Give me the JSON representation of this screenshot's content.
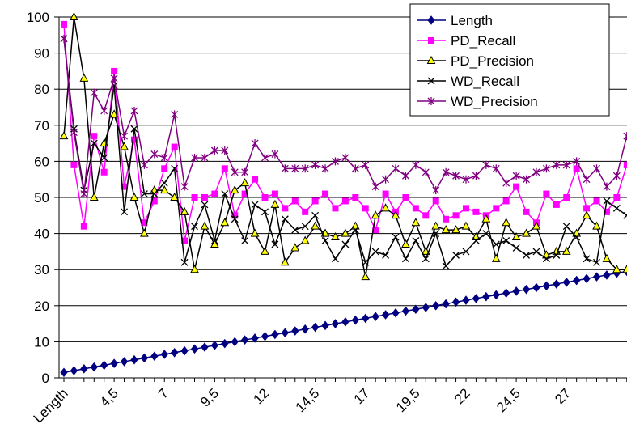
{
  "chart_data": {
    "type": "line",
    "title": "",
    "xlabel": "",
    "ylabel": "",
    "ylim": [
      0,
      100
    ],
    "yticks": [
      0,
      10,
      20,
      30,
      40,
      50,
      60,
      70,
      80,
      90,
      100
    ],
    "grid": "horizontal",
    "legend_position": "top-right",
    "x_tick_labels": [
      "Length",
      "4,5",
      "7",
      "9,5",
      "12",
      "14,5",
      "17",
      "19,5",
      "22",
      "24,5",
      "27"
    ],
    "x": [
      1.5,
      2,
      2.5,
      3,
      3.5,
      4,
      4.5,
      5,
      5.5,
      6,
      6.5,
      7,
      7.5,
      8,
      8.5,
      9,
      9.5,
      10,
      10.5,
      11,
      11.5,
      12,
      12.5,
      13,
      13.5,
      14,
      14.5,
      15,
      15.5,
      16,
      16.5,
      17,
      17.5,
      18,
      18.5,
      19,
      19.5,
      20,
      20.5,
      21,
      21.5,
      22,
      22.5,
      23,
      23.5,
      24,
      24.5,
      25,
      25.5,
      26,
      26.5,
      27,
      27.5,
      28,
      28.5,
      29,
      29.5
    ],
    "series": [
      {
        "name": "Length",
        "color": "#000080",
        "marker": "diamond",
        "values": [
          1.5,
          2,
          2.5,
          3,
          3.5,
          4,
          4.5,
          5,
          5.5,
          6,
          6.5,
          7,
          7.5,
          8,
          8.5,
          9,
          9.5,
          10,
          10.5,
          11,
          11.5,
          12,
          12.5,
          13,
          13.5,
          14,
          14.5,
          15,
          15.5,
          16,
          16.5,
          17,
          17.5,
          18,
          18.5,
          19,
          19.5,
          20,
          20.5,
          21,
          21.5,
          22,
          22.5,
          23,
          23.5,
          24,
          24.5,
          25,
          25.5,
          26,
          26.5,
          27,
          27.5,
          28,
          28.5,
          29,
          29.5
        ]
      },
      {
        "name": "PD_Recall",
        "color": "#ff00ff",
        "marker": "square",
        "values": [
          98,
          59,
          42,
          67,
          57,
          85,
          53,
          66,
          43,
          49,
          58,
          64,
          38,
          50,
          50,
          51,
          58,
          45,
          51,
          55,
          50,
          51,
          47,
          49,
          46,
          49,
          51,
          47,
          49,
          50,
          47,
          41,
          51,
          46,
          50,
          47,
          45,
          49,
          44,
          45,
          47,
          46,
          45,
          47,
          49,
          53,
          46,
          43,
          51,
          48,
          50,
          58,
          47,
          49,
          46,
          50,
          59
        ]
      },
      {
        "name": "PD_Precision",
        "color": "#000000",
        "fill": "#ffff00",
        "marker": "triangle",
        "values": [
          67,
          100,
          83,
          50,
          65,
          73,
          64,
          50,
          40,
          52,
          52,
          50,
          46,
          30,
          42,
          37,
          43,
          52,
          54,
          40,
          35,
          48,
          32,
          36,
          38,
          42,
          40,
          39,
          40,
          42,
          28,
          45,
          47,
          45,
          37,
          43,
          35,
          42,
          41,
          41,
          42,
          39,
          44,
          33,
          43,
          39,
          40,
          42,
          34,
          35,
          35,
          40,
          45,
          42,
          33,
          30,
          30
        ]
      },
      {
        "name": "WD_Recall",
        "color": "#000000",
        "marker": "x",
        "values": [
          94,
          69,
          52,
          65,
          61,
          81,
          46,
          69,
          51,
          51,
          54,
          58,
          32,
          42,
          48,
          38,
          51,
          44,
          38,
          48,
          46,
          37,
          44,
          41,
          42,
          45,
          38,
          33,
          37,
          41,
          32,
          35,
          34,
          39,
          33,
          38,
          33,
          40,
          31,
          34,
          35,
          38,
          40,
          37,
          38,
          36,
          34,
          35,
          33,
          34,
          42,
          39,
          33,
          32,
          49,
          47,
          45
        ]
      },
      {
        "name": "WD_Precision",
        "color": "#800080",
        "marker": "star",
        "values": [
          94,
          68,
          51,
          79,
          74,
          83,
          67,
          74,
          59,
          62,
          61,
          73,
          53,
          61,
          61,
          63,
          63,
          57,
          57,
          65,
          61,
          62,
          58,
          58,
          58,
          59,
          58,
          60,
          61,
          58,
          59,
          53,
          55,
          58,
          56,
          59,
          57,
          52,
          57,
          56,
          55,
          56,
          59,
          58,
          54,
          56,
          55,
          57,
          58,
          59,
          59,
          60,
          55,
          58,
          53,
          56,
          67
        ]
      }
    ]
  }
}
